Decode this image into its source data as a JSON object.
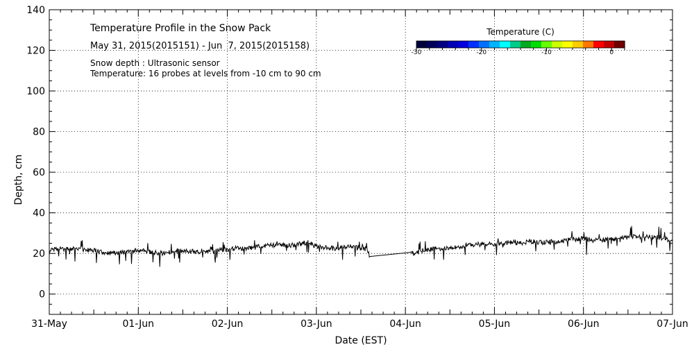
{
  "chart_data": {
    "type": "line",
    "title": "Temperature Profile in the Snow Pack",
    "date_range": "May 31, 2015(2015151) - Jun  7, 2015(2015158)",
    "notes": [
      "Snow depth : Ultrasonic sensor",
      "Temperature: 16 probes at levels from -10 cm to 90 cm"
    ],
    "xlabel": "Date (EST)",
    "ylabel": "Depth, cm",
    "x_tick_labels": [
      "31-May",
      "01-Jun",
      "02-Jun",
      "03-Jun",
      "04-Jun",
      "05-Jun",
      "06-Jun",
      "07-Jun"
    ],
    "xlim_days": [
      0,
      7
    ],
    "ylim": [
      -10,
      140
    ],
    "y_ticks": [
      0,
      20,
      40,
      60,
      80,
      100,
      120,
      140
    ],
    "grid": true,
    "colorbar": {
      "title": "Temperature (C)",
      "range": [
        -30,
        2
      ],
      "tick_values": [
        -30,
        -20,
        -10,
        0
      ],
      "tick_labels": [
        "-30",
        "-20",
        "-10",
        "0"
      ],
      "colors": [
        "#00003c",
        "#00005a",
        "#000080",
        "#0000b4",
        "#0000dc",
        "#0030ff",
        "#0070ff",
        "#00b4ff",
        "#00ffff",
        "#00cc88",
        "#00aa22",
        "#00dd00",
        "#66ff00",
        "#ccff00",
        "#ffff00",
        "#ffcc00",
        "#ff7700",
        "#ff0000",
        "#c00000",
        "#700000"
      ]
    },
    "series": [
      {
        "name": "Snow depth",
        "color": "#000000",
        "x_days": [
          0.0,
          0.1,
          0.2,
          0.3,
          0.4,
          0.5,
          0.6,
          0.7,
          0.8,
          0.9,
          1.0,
          1.1,
          1.2,
          1.3,
          1.4,
          1.5,
          1.6,
          1.7,
          1.8,
          1.9,
          2.0,
          2.1,
          2.2,
          2.3,
          2.4,
          2.5,
          2.6,
          2.7,
          2.8,
          2.9,
          3.0,
          3.1,
          3.2,
          3.3,
          3.4,
          3.5,
          3.57,
          3.6,
          4.05,
          4.1,
          4.2,
          4.3,
          4.4,
          4.5,
          4.6,
          4.7,
          4.8,
          4.9,
          5.0,
          5.1,
          5.2,
          5.3,
          5.4,
          5.5,
          5.6,
          5.7,
          5.8,
          5.9,
          6.0,
          6.1,
          6.2,
          6.3,
          6.4,
          6.5,
          6.6,
          6.7,
          6.8,
          6.9,
          7.0
        ],
        "values": [
          21.5,
          22.5,
          22.0,
          22.5,
          22.0,
          21.5,
          20.5,
          20.0,
          20.5,
          21.0,
          21.5,
          21.0,
          20.5,
          20.0,
          21.0,
          21.5,
          21.0,
          20.5,
          21.0,
          21.5,
          22.0,
          22.5,
          22.5,
          23.0,
          23.5,
          24.0,
          24.5,
          24.0,
          24.5,
          25.5,
          23.5,
          23.0,
          22.5,
          23.0,
          23.5,
          22.5,
          22.0,
          18.5,
          20.5,
          20.0,
          21.5,
          22.0,
          22.5,
          23.0,
          23.0,
          24.0,
          24.5,
          24.5,
          24.5,
          25.0,
          25.5,
          25.0,
          26.0,
          25.5,
          25.5,
          26.0,
          26.5,
          27.0,
          27.5,
          26.5,
          26.5,
          27.0,
          27.5,
          28.0,
          28.5,
          28.0,
          28.0,
          27.5,
          26.0
        ]
      }
    ]
  }
}
